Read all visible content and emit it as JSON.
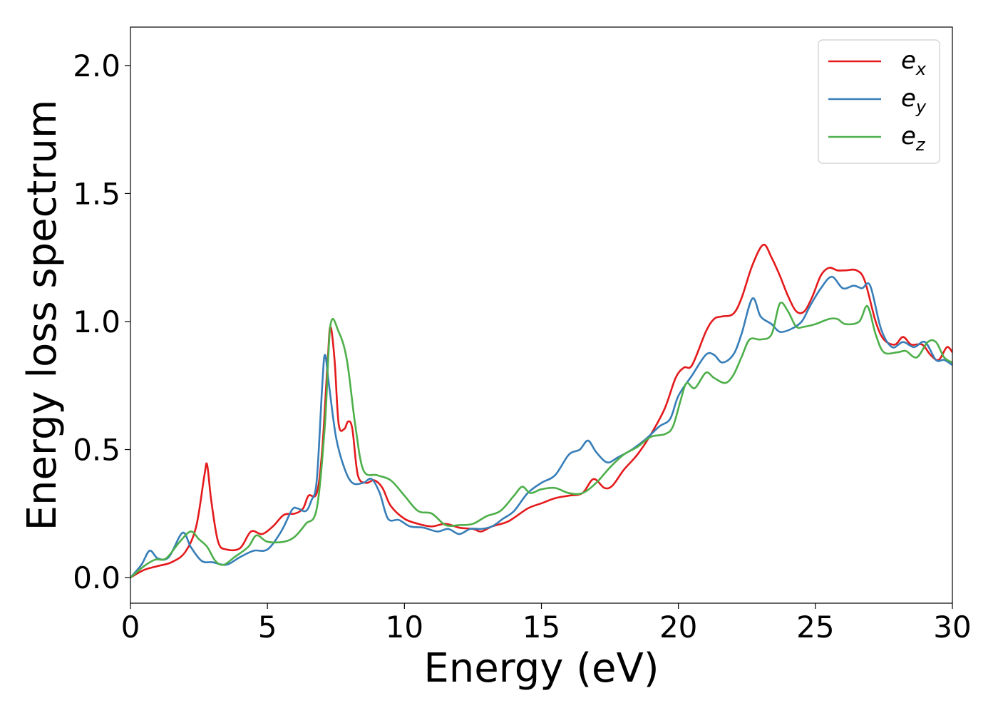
{
  "chart_data": {
    "type": "line",
    "xlabel": "Energy (eV)",
    "ylabel": "Energy loss spectrum",
    "xlim": [
      0,
      30
    ],
    "ylim": [
      -0.1,
      2.15
    ],
    "xticks": [
      0,
      5,
      10,
      15,
      20,
      25,
      30
    ],
    "yticks": [
      0.0,
      0.5,
      1.0,
      1.5,
      2.0
    ],
    "xtick_labels": [
      "0",
      "5",
      "10",
      "15",
      "20",
      "25",
      "30"
    ],
    "ytick_labels": [
      "0.0",
      "0.5",
      "1.0",
      "1.5",
      "2.0"
    ],
    "grid": false,
    "legend_position": "top-right",
    "series": [
      {
        "name": "e_x",
        "label_main": "e",
        "label_sub": "x",
        "color": "#e41a1c",
        "points": [
          [
            0,
            0
          ],
          [
            0.5,
            0.03
          ],
          [
            1,
            0.045
          ],
          [
            1.5,
            0.06
          ],
          [
            2,
            0.1
          ],
          [
            2.4,
            0.2
          ],
          [
            2.7,
            0.4
          ],
          [
            2.8,
            0.44
          ],
          [
            2.95,
            0.3
          ],
          [
            3.2,
            0.14
          ],
          [
            3.5,
            0.11
          ],
          [
            4,
            0.115
          ],
          [
            4.4,
            0.18
          ],
          [
            4.8,
            0.17
          ],
          [
            5.2,
            0.2
          ],
          [
            5.6,
            0.245
          ],
          [
            6,
            0.25
          ],
          [
            6.3,
            0.27
          ],
          [
            6.5,
            0.32
          ],
          [
            6.8,
            0.33
          ],
          [
            7.0,
            0.5
          ],
          [
            7.2,
            0.85
          ],
          [
            7.3,
            0.98
          ],
          [
            7.45,
            0.85
          ],
          [
            7.6,
            0.6
          ],
          [
            7.8,
            0.58
          ],
          [
            7.95,
            0.61
          ],
          [
            8.1,
            0.58
          ],
          [
            8.3,
            0.4
          ],
          [
            8.6,
            0.37
          ],
          [
            8.9,
            0.38
          ],
          [
            9.2,
            0.35
          ],
          [
            9.5,
            0.28
          ],
          [
            10,
            0.23
          ],
          [
            10.5,
            0.21
          ],
          [
            11,
            0.2
          ],
          [
            11.5,
            0.21
          ],
          [
            12,
            0.195
          ],
          [
            12.5,
            0.19
          ],
          [
            12.8,
            0.18
          ],
          [
            13.2,
            0.2
          ],
          [
            13.8,
            0.22
          ],
          [
            14.5,
            0.27
          ],
          [
            15,
            0.29
          ],
          [
            15.5,
            0.31
          ],
          [
            16,
            0.32
          ],
          [
            16.5,
            0.33
          ],
          [
            16.9,
            0.385
          ],
          [
            17.3,
            0.35
          ],
          [
            17.6,
            0.36
          ],
          [
            18,
            0.42
          ],
          [
            18.5,
            0.48
          ],
          [
            19,
            0.56
          ],
          [
            19.5,
            0.66
          ],
          [
            19.9,
            0.78
          ],
          [
            20.2,
            0.82
          ],
          [
            20.5,
            0.83
          ],
          [
            21,
            0.96
          ],
          [
            21.3,
            1.01
          ],
          [
            21.6,
            1.02
          ],
          [
            22,
            1.03
          ],
          [
            22.3,
            1.09
          ],
          [
            22.7,
            1.22
          ],
          [
            23.1,
            1.3
          ],
          [
            23.4,
            1.25
          ],
          [
            23.7,
            1.18
          ],
          [
            24,
            1.1
          ],
          [
            24.3,
            1.04
          ],
          [
            24.6,
            1.04
          ],
          [
            24.9,
            1.1
          ],
          [
            25.2,
            1.18
          ],
          [
            25.5,
            1.21
          ],
          [
            25.8,
            1.2
          ],
          [
            26.1,
            1.2
          ],
          [
            26.5,
            1.2
          ],
          [
            26.8,
            1.16
          ],
          [
            27.2,
            1.0
          ],
          [
            27.5,
            0.93
          ],
          [
            27.9,
            0.91
          ],
          [
            28.2,
            0.94
          ],
          [
            28.5,
            0.91
          ],
          [
            28.9,
            0.91
          ],
          [
            29.2,
            0.87
          ],
          [
            29.5,
            0.85
          ],
          [
            29.8,
            0.9
          ],
          [
            30,
            0.88
          ]
        ]
      },
      {
        "name": "e_y",
        "label_main": "e",
        "label_sub": "y",
        "color": "#377eb8",
        "points": [
          [
            0,
            0
          ],
          [
            0.4,
            0.05
          ],
          [
            0.7,
            0.105
          ],
          [
            1,
            0.075
          ],
          [
            1.4,
            0.08
          ],
          [
            1.9,
            0.175
          ],
          [
            2.2,
            0.12
          ],
          [
            2.6,
            0.065
          ],
          [
            3,
            0.06
          ],
          [
            3.5,
            0.05
          ],
          [
            4,
            0.08
          ],
          [
            4.5,
            0.105
          ],
          [
            5,
            0.11
          ],
          [
            5.5,
            0.18
          ],
          [
            5.9,
            0.265
          ],
          [
            6.1,
            0.27
          ],
          [
            6.4,
            0.26
          ],
          [
            6.6,
            0.3
          ],
          [
            6.8,
            0.38
          ],
          [
            7.0,
            0.75
          ],
          [
            7.1,
            0.87
          ],
          [
            7.25,
            0.75
          ],
          [
            7.5,
            0.55
          ],
          [
            7.8,
            0.43
          ],
          [
            8.1,
            0.37
          ],
          [
            8.5,
            0.37
          ],
          [
            8.8,
            0.385
          ],
          [
            9.1,
            0.33
          ],
          [
            9.4,
            0.23
          ],
          [
            9.8,
            0.225
          ],
          [
            10.2,
            0.2
          ],
          [
            10.7,
            0.195
          ],
          [
            11.2,
            0.18
          ],
          [
            11.6,
            0.19
          ],
          [
            12,
            0.17
          ],
          [
            12.4,
            0.19
          ],
          [
            12.8,
            0.19
          ],
          [
            13.2,
            0.2
          ],
          [
            13.6,
            0.23
          ],
          [
            14,
            0.26
          ],
          [
            14.5,
            0.33
          ],
          [
            15,
            0.37
          ],
          [
            15.5,
            0.4
          ],
          [
            16,
            0.48
          ],
          [
            16.4,
            0.5
          ],
          [
            16.7,
            0.535
          ],
          [
            17,
            0.49
          ],
          [
            17.4,
            0.45
          ],
          [
            17.8,
            0.47
          ],
          [
            18.3,
            0.5
          ],
          [
            18.8,
            0.54
          ],
          [
            19.3,
            0.59
          ],
          [
            19.7,
            0.62
          ],
          [
            20,
            0.71
          ],
          [
            20.5,
            0.79
          ],
          [
            21,
            0.87
          ],
          [
            21.3,
            0.87
          ],
          [
            21.6,
            0.84
          ],
          [
            22,
            0.87
          ],
          [
            22.3,
            0.95
          ],
          [
            22.7,
            1.09
          ],
          [
            23,
            1.02
          ],
          [
            23.4,
            0.99
          ],
          [
            23.7,
            0.96
          ],
          [
            24.1,
            0.97
          ],
          [
            24.5,
            1.0
          ],
          [
            24.8,
            1.06
          ],
          [
            25.2,
            1.13
          ],
          [
            25.6,
            1.175
          ],
          [
            26,
            1.13
          ],
          [
            26.4,
            1.14
          ],
          [
            26.7,
            1.13
          ],
          [
            27,
            1.14
          ],
          [
            27.4,
            0.97
          ],
          [
            27.8,
            0.9
          ],
          [
            28.2,
            0.92
          ],
          [
            28.6,
            0.9
          ],
          [
            29,
            0.92
          ],
          [
            29.4,
            0.85
          ],
          [
            29.7,
            0.85
          ],
          [
            30,
            0.83
          ]
        ]
      },
      {
        "name": "e_z",
        "label_main": "e",
        "label_sub": "z",
        "color": "#4daf4a",
        "points": [
          [
            0,
            0
          ],
          [
            0.5,
            0.045
          ],
          [
            0.9,
            0.07
          ],
          [
            1.3,
            0.075
          ],
          [
            1.8,
            0.14
          ],
          [
            2.2,
            0.18
          ],
          [
            2.5,
            0.15
          ],
          [
            2.8,
            0.12
          ],
          [
            3.1,
            0.065
          ],
          [
            3.4,
            0.05
          ],
          [
            3.8,
            0.08
          ],
          [
            4.3,
            0.12
          ],
          [
            4.6,
            0.165
          ],
          [
            5,
            0.14
          ],
          [
            5.6,
            0.14
          ],
          [
            6,
            0.16
          ],
          [
            6.4,
            0.21
          ],
          [
            6.8,
            0.27
          ],
          [
            7.1,
            0.6
          ],
          [
            7.3,
            0.985
          ],
          [
            7.6,
            0.96
          ],
          [
            7.9,
            0.85
          ],
          [
            8.2,
            0.6
          ],
          [
            8.5,
            0.42
          ],
          [
            9,
            0.4
          ],
          [
            9.5,
            0.38
          ],
          [
            10,
            0.32
          ],
          [
            10.5,
            0.26
          ],
          [
            11,
            0.25
          ],
          [
            11.5,
            0.205
          ],
          [
            12,
            0.205
          ],
          [
            12.5,
            0.21
          ],
          [
            13,
            0.24
          ],
          [
            13.5,
            0.26
          ],
          [
            14,
            0.32
          ],
          [
            14.3,
            0.355
          ],
          [
            14.6,
            0.33
          ],
          [
            15,
            0.345
          ],
          [
            15.5,
            0.35
          ],
          [
            16,
            0.33
          ],
          [
            16.5,
            0.33
          ],
          [
            17,
            0.37
          ],
          [
            17.5,
            0.43
          ],
          [
            18,
            0.48
          ],
          [
            18.5,
            0.51
          ],
          [
            19,
            0.55
          ],
          [
            19.5,
            0.56
          ],
          [
            19.8,
            0.59
          ],
          [
            20.1,
            0.7
          ],
          [
            20.3,
            0.76
          ],
          [
            20.6,
            0.74
          ],
          [
            21,
            0.8
          ],
          [
            21.3,
            0.78
          ],
          [
            21.7,
            0.76
          ],
          [
            22,
            0.79
          ],
          [
            22.3,
            0.86
          ],
          [
            22.6,
            0.93
          ],
          [
            23,
            0.93
          ],
          [
            23.4,
            0.95
          ],
          [
            23.7,
            1.07
          ],
          [
            24,
            1.04
          ],
          [
            24.3,
            0.98
          ],
          [
            24.6,
            0.98
          ],
          [
            25,
            0.99
          ],
          [
            25.5,
            1.01
          ],
          [
            25.8,
            1.01
          ],
          [
            26.1,
            0.99
          ],
          [
            26.6,
            1.0
          ],
          [
            26.9,
            1.06
          ],
          [
            27.2,
            0.95
          ],
          [
            27.5,
            0.88
          ],
          [
            28,
            0.88
          ],
          [
            28.3,
            0.885
          ],
          [
            28.7,
            0.86
          ],
          [
            29.1,
            0.92
          ],
          [
            29.4,
            0.92
          ],
          [
            29.7,
            0.86
          ],
          [
            30,
            0.84
          ]
        ]
      }
    ]
  }
}
